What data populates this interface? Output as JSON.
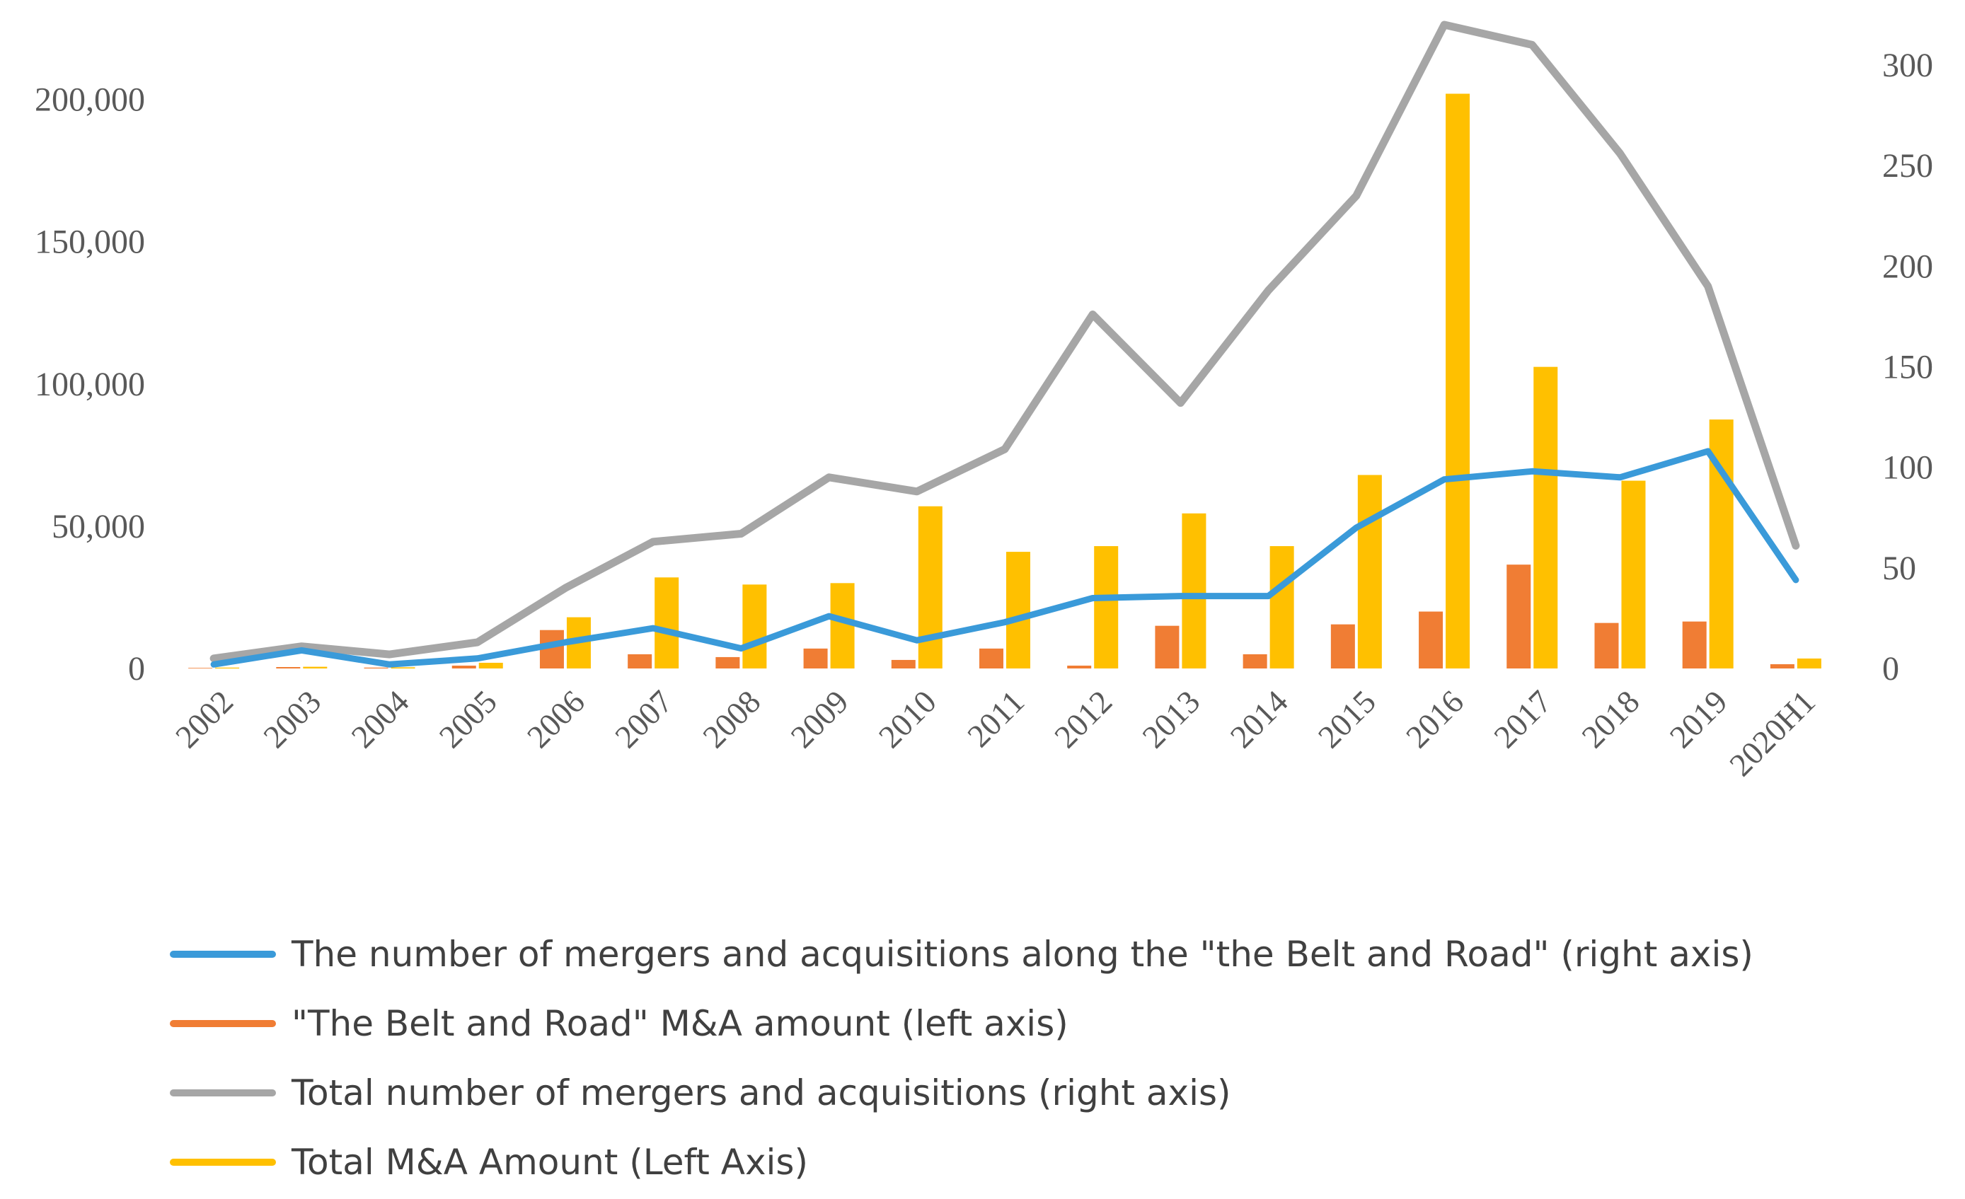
{
  "chart_data": {
    "type": "bar",
    "title": "",
    "xlabel": "",
    "ylabel": "",
    "grid": false,
    "categories": [
      "2002",
      "2003",
      "2004",
      "2005",
      "2006",
      "2007",
      "2008",
      "2009",
      "2010",
      "2011",
      "2012",
      "2013",
      "2014",
      "2015",
      "2016",
      "2017",
      "2018",
      "2019",
      "2020H1"
    ],
    "left_axis": {
      "ylim": [
        0,
        225000
      ],
      "ticks": [
        0,
        50000,
        100000,
        150000,
        200000
      ],
      "tick_labels": [
        "0",
        "50,000",
        "100,000",
        "150,000",
        "200,000"
      ]
    },
    "right_axis": {
      "ylim": [
        0,
        320
      ],
      "ticks": [
        0,
        50,
        100,
        150,
        200,
        250,
        300
      ],
      "tick_labels": [
        "0",
        "50",
        "100",
        "150",
        "200",
        "250",
        "300"
      ]
    },
    "series": [
      {
        "name": "The number of mergers and acquisitions along the \"the Belt and Road\" (right axis)",
        "kind": "line",
        "axis": "right",
        "color": "#3a9ad9",
        "values": [
          2,
          9,
          2,
          5,
          13,
          20,
          10,
          26,
          14,
          23,
          35,
          36,
          36,
          70,
          94,
          98,
          95,
          108,
          44
        ]
      },
      {
        "name": "\"The Belt and Road\" M&A amount (left axis)",
        "kind": "bar",
        "axis": "left",
        "color": "#f07d34",
        "values": [
          200,
          500,
          300,
          1000,
          13500,
          5000,
          4000,
          7000,
          3000,
          7000,
          1000,
          15000,
          5000,
          15500,
          20000,
          36500,
          16000,
          16500,
          1500
        ]
      },
      {
        "name": "Total number of mergers and acquisitions (right axis)",
        "kind": "line",
        "axis": "right",
        "color": "#a6a6a6",
        "values": [
          5,
          11,
          7,
          13,
          40,
          63,
          67,
          95,
          88,
          109,
          176,
          132,
          188,
          235,
          320,
          310,
          256,
          190,
          61
        ]
      },
      {
        "name": "Total M&A Amount (Left Axis)",
        "kind": "bar",
        "axis": "left",
        "color": "#ffc000",
        "values": [
          300,
          600,
          400,
          2000,
          18000,
          32000,
          29500,
          30000,
          57000,
          41000,
          43000,
          54500,
          43000,
          68000,
          202000,
          106000,
          66000,
          87500,
          3500
        ]
      }
    ],
    "legend_position": "bottom"
  }
}
